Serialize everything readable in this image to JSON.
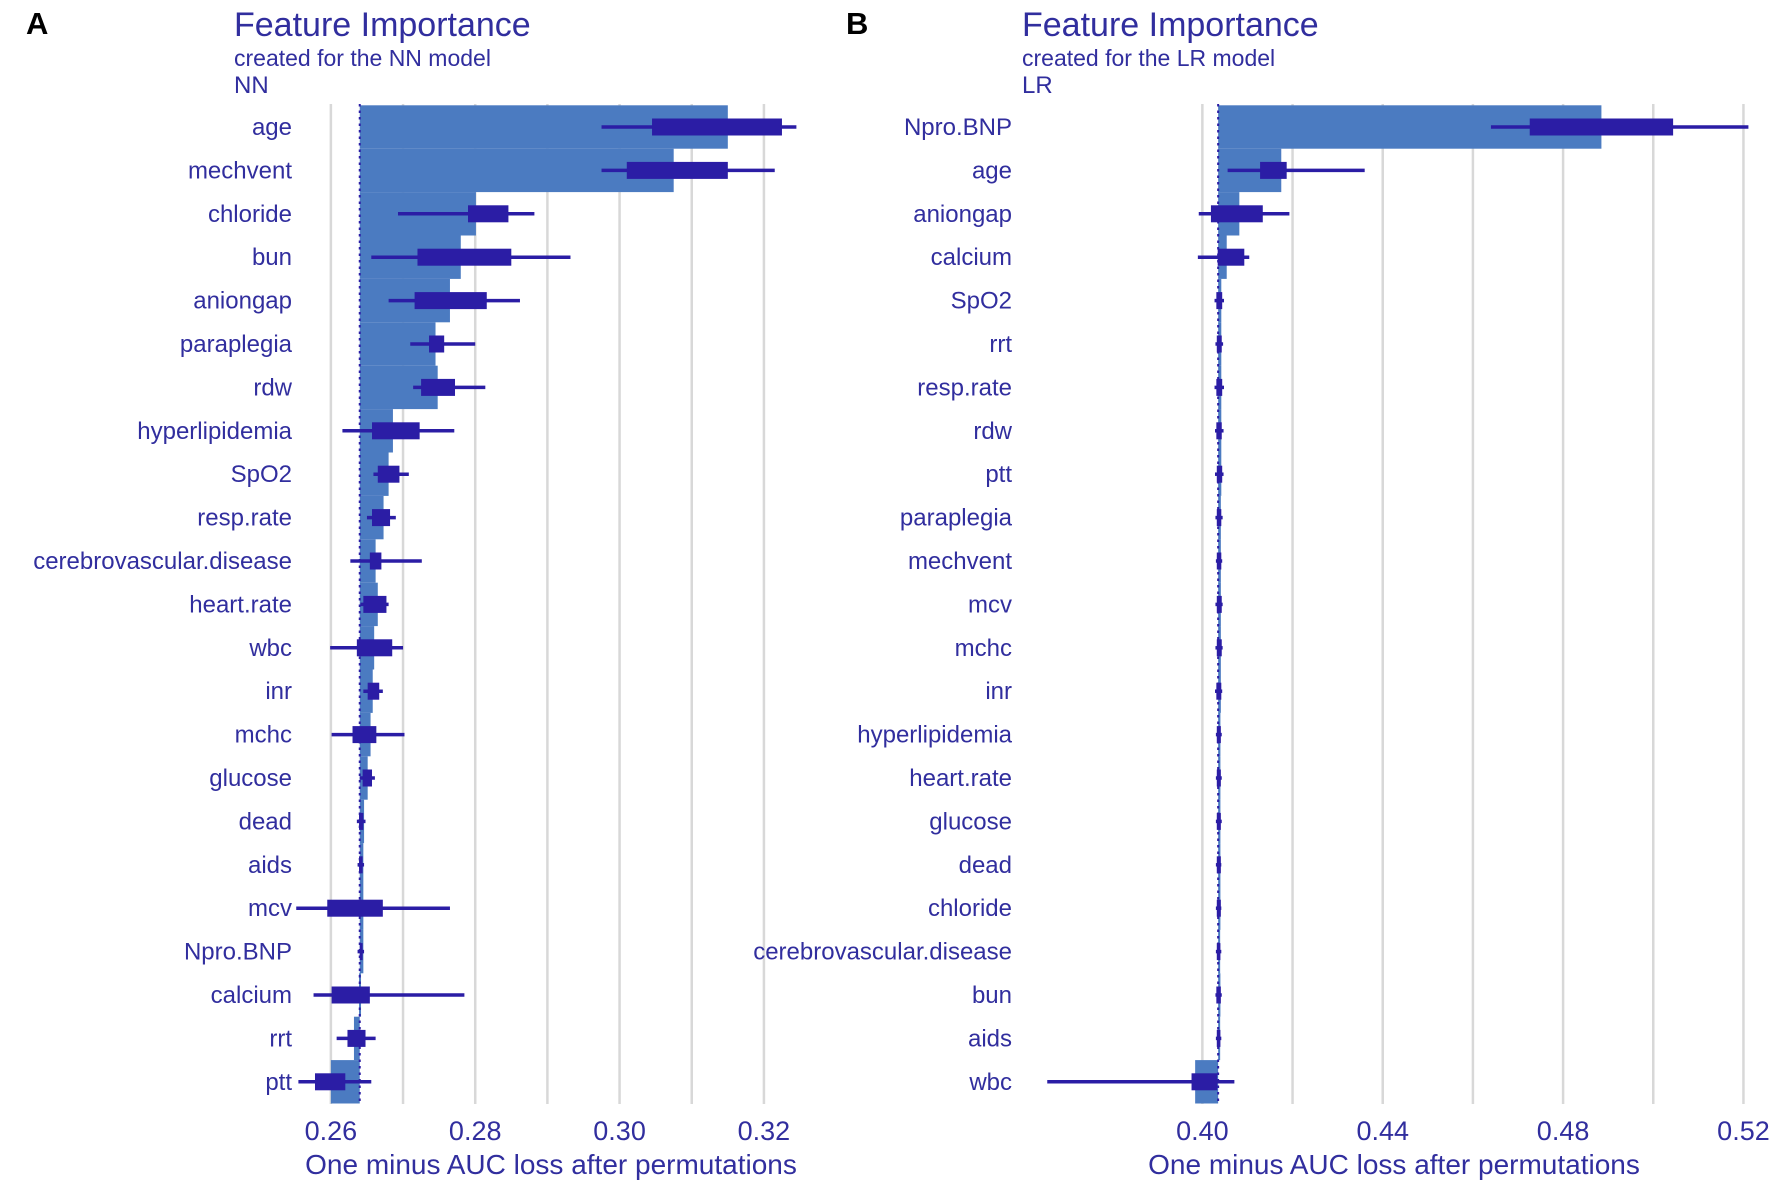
{
  "colors": {
    "bar": "#4b7bc1",
    "box": "#2b1da5",
    "text": "#312e9e",
    "grid": "#d8d8d8",
    "panel_letter": "#000000"
  },
  "chart_data": [
    {
      "type": "bar",
      "panel_label": "A",
      "title": "Feature Importance",
      "subtitle": "created for the NN model",
      "facet": "NN",
      "xlabel": "One minus AUC loss after permutations",
      "baseline": 0.264,
      "xlim": [
        0.256,
        0.325
      ],
      "gridlines": [
        0.26,
        0.27,
        0.28,
        0.29,
        0.3,
        0.31,
        0.32
      ],
      "ticks": [
        {
          "v": 0.26,
          "label": "0.26"
        },
        {
          "v": 0.28,
          "label": "0.28"
        },
        {
          "v": 0.3,
          "label": "0.30"
        },
        {
          "v": 0.32,
          "label": "0.32"
        }
      ],
      "rows": [
        {
          "feature": "age",
          "bar": 0.315,
          "q1": 0.3045,
          "q3": 0.3225,
          "lo": 0.2975,
          "hi": 0.3245
        },
        {
          "feature": "mechvent",
          "bar": 0.3075,
          "q1": 0.301,
          "q3": 0.315,
          "lo": 0.2975,
          "hi": 0.3215
        },
        {
          "feature": "chloride",
          "bar": 0.2801,
          "q1": 0.279,
          "q3": 0.2846,
          "lo": 0.2693,
          "hi": 0.2882
        },
        {
          "feature": "bun",
          "bar": 0.278,
          "q1": 0.272,
          "q3": 0.285,
          "lo": 0.2656,
          "hi": 0.2932
        },
        {
          "feature": "aniongap",
          "bar": 0.2765,
          "q1": 0.2716,
          "q3": 0.2816,
          "lo": 0.268,
          "hi": 0.2862
        },
        {
          "feature": "paraplegia",
          "bar": 0.2745,
          "q1": 0.2736,
          "q3": 0.2757,
          "lo": 0.271,
          "hi": 0.28
        },
        {
          "feature": "rdw",
          "bar": 0.2748,
          "q1": 0.2725,
          "q3": 0.2772,
          "lo": 0.2714,
          "hi": 0.2814
        },
        {
          "feature": "hyperlipidemia",
          "bar": 0.2686,
          "q1": 0.2657,
          "q3": 0.2723,
          "lo": 0.2616,
          "hi": 0.2771
        },
        {
          "feature": "SpO2",
          "bar": 0.268,
          "q1": 0.2665,
          "q3": 0.2695,
          "lo": 0.2659,
          "hi": 0.2708
        },
        {
          "feature": "resp.rate",
          "bar": 0.2673,
          "q1": 0.2657,
          "q3": 0.2682,
          "lo": 0.265,
          "hi": 0.269
        },
        {
          "feature": "cerebrovascular.disease",
          "bar": 0.2662,
          "q1": 0.2654,
          "q3": 0.267,
          "lo": 0.2627,
          "hi": 0.2726
        },
        {
          "feature": "heart.rate",
          "bar": 0.2665,
          "q1": 0.2645,
          "q3": 0.2677,
          "lo": 0.2641,
          "hi": 0.268
        },
        {
          "feature": "wbc",
          "bar": 0.266,
          "q1": 0.2636,
          "q3": 0.2685,
          "lo": 0.2599,
          "hi": 0.27
        },
        {
          "feature": "inr",
          "bar": 0.2658,
          "q1": 0.2651,
          "q3": 0.2667,
          "lo": 0.2645,
          "hi": 0.2672
        },
        {
          "feature": "mchc",
          "bar": 0.2655,
          "q1": 0.263,
          "q3": 0.2663,
          "lo": 0.2601,
          "hi": 0.2702
        },
        {
          "feature": "glucose",
          "bar": 0.2651,
          "q1": 0.2644,
          "q3": 0.2657,
          "lo": 0.264,
          "hi": 0.2661
        },
        {
          "feature": "dead",
          "bar": 0.2646,
          "q1": 0.2639,
          "q3": 0.2645,
          "lo": 0.2636,
          "hi": 0.2648
        },
        {
          "feature": "aids",
          "bar": 0.2645,
          "q1": 0.2639,
          "q3": 0.2644,
          "lo": 0.2637,
          "hi": 0.2646
        },
        {
          "feature": "mcv",
          "bar": 0.2645,
          "q1": 0.2595,
          "q3": 0.2672,
          "lo": 0.2552,
          "hi": 0.2765
        },
        {
          "feature": "Npro.BNP",
          "bar": 0.2645,
          "q1": 0.264,
          "q3": 0.2644,
          "lo": 0.2637,
          "hi": 0.2646
        },
        {
          "feature": "calcium",
          "bar": 0.2639,
          "q1": 0.2601,
          "q3": 0.2654,
          "lo": 0.2576,
          "hi": 0.2785
        },
        {
          "feature": "rrt",
          "bar": 0.2632,
          "q1": 0.2623,
          "q3": 0.2648,
          "lo": 0.2608,
          "hi": 0.2662
        },
        {
          "feature": "ptt",
          "bar": 0.26,
          "q1": 0.2578,
          "q3": 0.262,
          "lo": 0.2555,
          "hi": 0.2656
        }
      ]
    },
    {
      "type": "bar",
      "panel_label": "B",
      "title": "Feature Importance",
      "subtitle": "created for the LR model",
      "facet": "LR",
      "xlabel": "One minus AUC loss after permutations",
      "baseline": 0.4035,
      "xlim": [
        0.36,
        0.525
      ],
      "gridlines": [
        0.4,
        0.42,
        0.44,
        0.46,
        0.48,
        0.5,
        0.52
      ],
      "ticks": [
        {
          "v": 0.4,
          "label": "0.40"
        },
        {
          "v": 0.44,
          "label": "0.44"
        },
        {
          "v": 0.48,
          "label": "0.48"
        },
        {
          "v": 0.52,
          "label": "0.52"
        }
      ],
      "rows": [
        {
          "feature": "Npro.BNP",
          "bar": 0.4885,
          "q1": 0.4726,
          "q3": 0.5044,
          "lo": 0.464,
          "hi": 0.5211
        },
        {
          "feature": "age",
          "bar": 0.4175,
          "q1": 0.4128,
          "q3": 0.4187,
          "lo": 0.4056,
          "hi": 0.436
        },
        {
          "feature": "aniongap",
          "bar": 0.4082,
          "q1": 0.4019,
          "q3": 0.4134,
          "lo": 0.3992,
          "hi": 0.4193
        },
        {
          "feature": "calcium",
          "bar": 0.4054,
          "q1": 0.4034,
          "q3": 0.4093,
          "lo": 0.399,
          "hi": 0.4104
        },
        {
          "feature": "SpO2",
          "bar": 0.4042,
          "q1": 0.4031,
          "q3": 0.4044,
          "lo": 0.4027,
          "hi": 0.4048
        },
        {
          "feature": "rrt",
          "bar": 0.4042,
          "q1": 0.4032,
          "q3": 0.4043,
          "lo": 0.4029,
          "hi": 0.4046
        },
        {
          "feature": "resp.rate",
          "bar": 0.4042,
          "q1": 0.4031,
          "q3": 0.4044,
          "lo": 0.4027,
          "hi": 0.4048
        },
        {
          "feature": "rdw",
          "bar": 0.4042,
          "q1": 0.4031,
          "q3": 0.4043,
          "lo": 0.4028,
          "hi": 0.4047
        },
        {
          "feature": "ptt",
          "bar": 0.4042,
          "q1": 0.4032,
          "q3": 0.4044,
          "lo": 0.4028,
          "hi": 0.4047
        },
        {
          "feature": "paraplegia",
          "bar": 0.4041,
          "q1": 0.4032,
          "q3": 0.4042,
          "lo": 0.4029,
          "hi": 0.4045
        },
        {
          "feature": "mechvent",
          "bar": 0.4041,
          "q1": 0.4032,
          "q3": 0.4042,
          "lo": 0.403,
          "hi": 0.4044
        },
        {
          "feature": "mcv",
          "bar": 0.4041,
          "q1": 0.4032,
          "q3": 0.4043,
          "lo": 0.4029,
          "hi": 0.4045
        },
        {
          "feature": "mchc",
          "bar": 0.4041,
          "q1": 0.4032,
          "q3": 0.4043,
          "lo": 0.4029,
          "hi": 0.4045
        },
        {
          "feature": "inr",
          "bar": 0.4041,
          "q1": 0.4031,
          "q3": 0.4042,
          "lo": 0.4028,
          "hi": 0.4044
        },
        {
          "feature": "hyperlipidemia",
          "bar": 0.404,
          "q1": 0.4032,
          "q3": 0.4041,
          "lo": 0.403,
          "hi": 0.4043
        },
        {
          "feature": "heart.rate",
          "bar": 0.404,
          "q1": 0.4032,
          "q3": 0.4041,
          "lo": 0.403,
          "hi": 0.4043
        },
        {
          "feature": "glucose",
          "bar": 0.404,
          "q1": 0.4032,
          "q3": 0.4041,
          "lo": 0.403,
          "hi": 0.4043
        },
        {
          "feature": "dead",
          "bar": 0.404,
          "q1": 0.4032,
          "q3": 0.4041,
          "lo": 0.403,
          "hi": 0.4042
        },
        {
          "feature": "chloride",
          "bar": 0.404,
          "q1": 0.4032,
          "q3": 0.4041,
          "lo": 0.403,
          "hi": 0.4042
        },
        {
          "feature": "cerebrovascular.disease",
          "bar": 0.4039,
          "q1": 0.4032,
          "q3": 0.404,
          "lo": 0.403,
          "hi": 0.4042
        },
        {
          "feature": "bun",
          "bar": 0.404,
          "q1": 0.4031,
          "q3": 0.4041,
          "lo": 0.4029,
          "hi": 0.4043
        },
        {
          "feature": "aids",
          "bar": 0.4039,
          "q1": 0.4032,
          "q3": 0.404,
          "lo": 0.403,
          "hi": 0.4042
        },
        {
          "feature": "wbc",
          "bar": 0.3984,
          "q1": 0.3976,
          "q3": 0.4033,
          "lo": 0.3656,
          "hi": 0.4071
        }
      ]
    }
  ]
}
